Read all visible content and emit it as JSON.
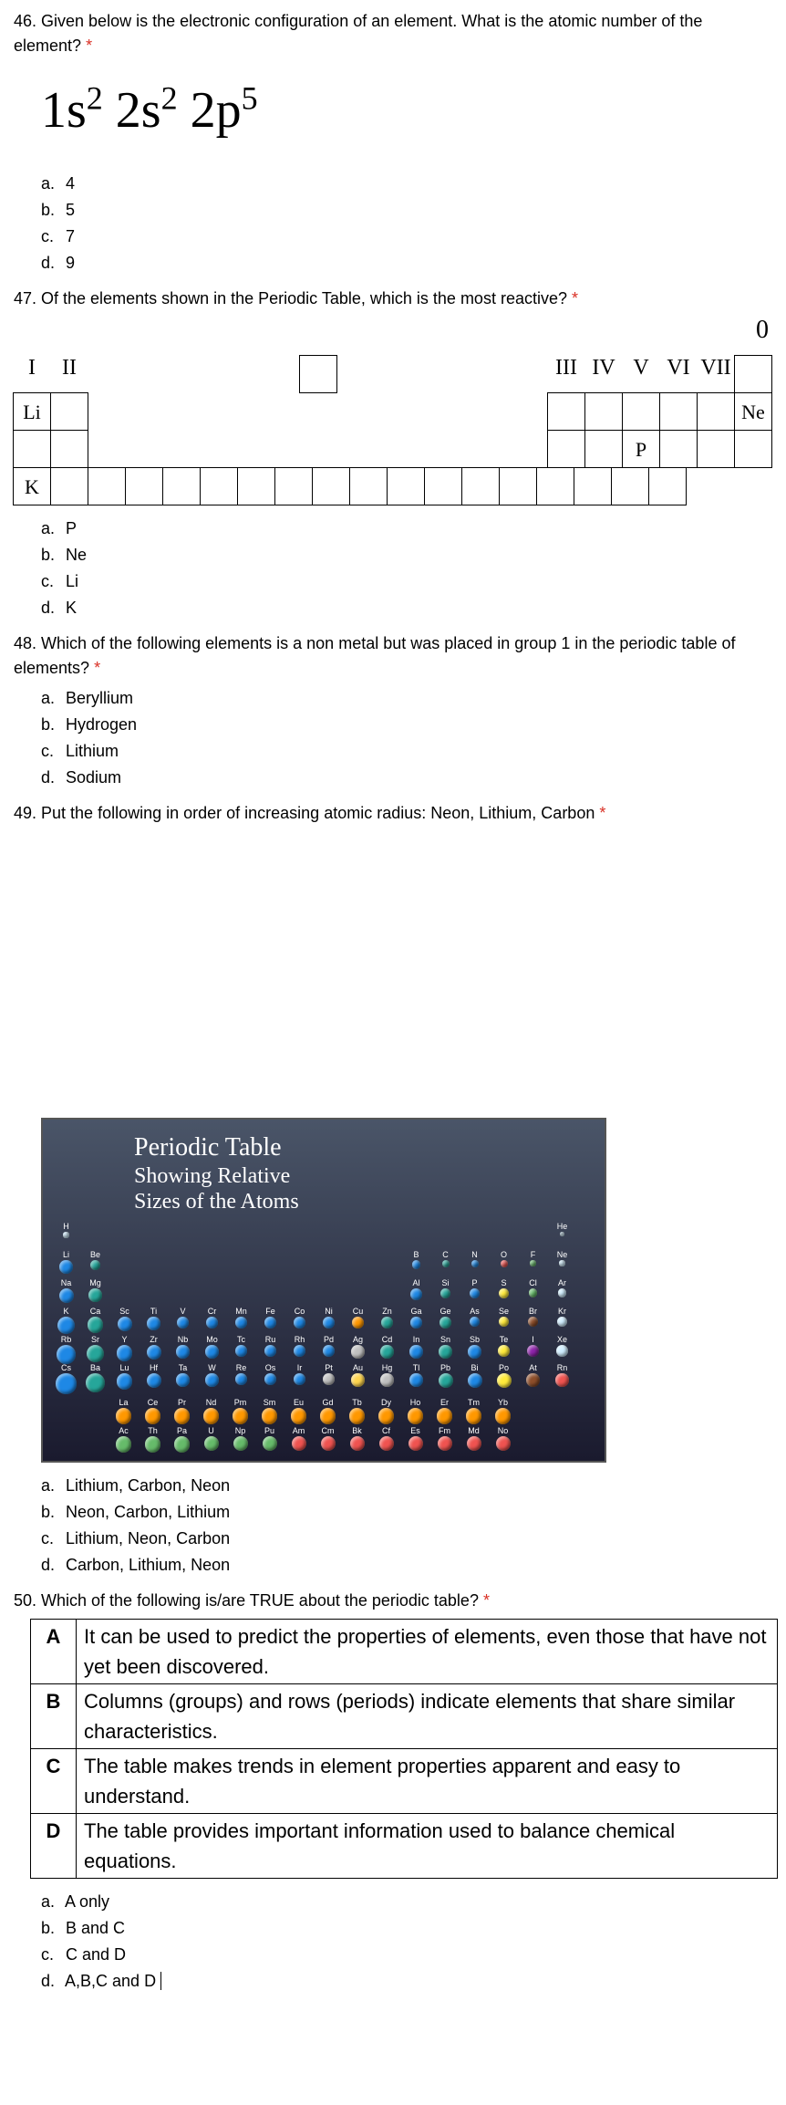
{
  "q46": {
    "text": "46. Given below is the electronic configuration of an element. What is the atomic number of the element?",
    "formula_html": "1s² 2s² 2p⁵",
    "options": {
      "a": "4",
      "b": "5",
      "c": "7",
      "d": "9"
    }
  },
  "q47": {
    "text": "47. Of the elements shown in the Periodic Table, which is the most reactive?",
    "groups": [
      "I",
      "II",
      "III",
      "IV",
      "V",
      "VI",
      "VII",
      "0"
    ],
    "cells": {
      "Li": "Li",
      "Ne": "Ne",
      "P": "P",
      "K": "K"
    },
    "options": {
      "a": "P",
      "b": "Ne",
      "c": "Li",
      "d": "K"
    }
  },
  "q48": {
    "text": "48. Which of the following elements is a non metal but was placed in group 1 in the periodic table of elements?",
    "options": {
      "a": "Beryllium",
      "b": "Hydrogen",
      "c": "Lithium",
      "d": "Sodium"
    }
  },
  "q49": {
    "text": "49. Put the following in order of increasing atomic radius: Neon, Lithium, Carbon",
    "title1": "Periodic Table",
    "title2": "Showing Relative",
    "title3": "Sizes of the Atoms",
    "rows": [
      [
        {
          "s": "H",
          "c": "#cfeeff",
          "r": 4
        },
        null,
        null,
        null,
        null,
        null,
        null,
        null,
        null,
        null,
        null,
        null,
        null,
        null,
        null,
        null,
        null,
        {
          "s": "He",
          "c": "#cfeeff",
          "r": 3
        }
      ],
      [
        {
          "s": "Li",
          "c": "#1e88e5",
          "r": 9
        },
        {
          "s": "Be",
          "c": "#26a69a",
          "r": 7
        },
        null,
        null,
        null,
        null,
        null,
        null,
        null,
        null,
        null,
        null,
        {
          "s": "B",
          "c": "#1e88e5",
          "r": 6
        },
        {
          "s": "C",
          "c": "#26a69a",
          "r": 5
        },
        {
          "s": "N",
          "c": "#1e88e5",
          "r": 5
        },
        {
          "s": "O",
          "c": "#ef5350",
          "r": 5
        },
        {
          "s": "F",
          "c": "#66bb6a",
          "r": 4
        },
        {
          "s": "Ne",
          "c": "#cfeeff",
          "r": 4
        }
      ],
      [
        {
          "s": "Na",
          "c": "#1e88e5",
          "r": 10
        },
        {
          "s": "Mg",
          "c": "#26a69a",
          "r": 9
        },
        null,
        null,
        null,
        null,
        null,
        null,
        null,
        null,
        null,
        null,
        {
          "s": "Al",
          "c": "#1e88e5",
          "r": 8
        },
        {
          "s": "Si",
          "c": "#26a69a",
          "r": 7
        },
        {
          "s": "P",
          "c": "#1e88e5",
          "r": 7
        },
        {
          "s": "S",
          "c": "#ffeb3b",
          "r": 7
        },
        {
          "s": "Cl",
          "c": "#66bb6a",
          "r": 6
        },
        {
          "s": "Ar",
          "c": "#cfeeff",
          "r": 6
        }
      ],
      [
        {
          "s": "K",
          "c": "#1e88e5",
          "r": 12
        },
        {
          "s": "Ca",
          "c": "#26a69a",
          "r": 11
        },
        {
          "s": "Sc",
          "c": "#1e88e5",
          "r": 10
        },
        {
          "s": "Ti",
          "c": "#1e88e5",
          "r": 9
        },
        {
          "s": "V",
          "c": "#1e88e5",
          "r": 8
        },
        {
          "s": "Cr",
          "c": "#1e88e5",
          "r": 8
        },
        {
          "s": "Mn",
          "c": "#1e88e5",
          "r": 8
        },
        {
          "s": "Fe",
          "c": "#1e88e5",
          "r": 8
        },
        {
          "s": "Co",
          "c": "#1e88e5",
          "r": 8
        },
        {
          "s": "Ni",
          "c": "#1e88e5",
          "r": 8
        },
        {
          "s": "Cu",
          "c": "#ff9800",
          "r": 8
        },
        {
          "s": "Zn",
          "c": "#26a69a",
          "r": 8
        },
        {
          "s": "Ga",
          "c": "#1e88e5",
          "r": 8
        },
        {
          "s": "Ge",
          "c": "#26a69a",
          "r": 8
        },
        {
          "s": "As",
          "c": "#1e88e5",
          "r": 7
        },
        {
          "s": "Se",
          "c": "#ffeb3b",
          "r": 7
        },
        {
          "s": "Br",
          "c": "#8d4e2a",
          "r": 7
        },
        {
          "s": "Kr",
          "c": "#cfeeff",
          "r": 7
        }
      ],
      [
        {
          "s": "Rb",
          "c": "#1e88e5",
          "r": 13
        },
        {
          "s": "Sr",
          "c": "#26a69a",
          "r": 12
        },
        {
          "s": "Y",
          "c": "#1e88e5",
          "r": 11
        },
        {
          "s": "Zr",
          "c": "#1e88e5",
          "r": 10
        },
        {
          "s": "Nb",
          "c": "#1e88e5",
          "r": 9
        },
        {
          "s": "Mo",
          "c": "#1e88e5",
          "r": 9
        },
        {
          "s": "Tc",
          "c": "#1e88e5",
          "r": 8
        },
        {
          "s": "Ru",
          "c": "#1e88e5",
          "r": 8
        },
        {
          "s": "Rh",
          "c": "#1e88e5",
          "r": 8
        },
        {
          "s": "Pd",
          "c": "#1e88e5",
          "r": 8
        },
        {
          "s": "Ag",
          "c": "#c0c0c0",
          "r": 9
        },
        {
          "s": "Cd",
          "c": "#26a69a",
          "r": 9
        },
        {
          "s": "In",
          "c": "#1e88e5",
          "r": 9
        },
        {
          "s": "Sn",
          "c": "#26a69a",
          "r": 9
        },
        {
          "s": "Sb",
          "c": "#1e88e5",
          "r": 9
        },
        {
          "s": "Te",
          "c": "#ffeb3b",
          "r": 8
        },
        {
          "s": "I",
          "c": "#8e24aa",
          "r": 8
        },
        {
          "s": "Xe",
          "c": "#cfeeff",
          "r": 8
        }
      ],
      [
        {
          "s": "Cs",
          "c": "#1e88e5",
          "r": 14
        },
        {
          "s": "Ba",
          "c": "#26a69a",
          "r": 13
        },
        {
          "s": "Lu",
          "c": "#1e88e5",
          "r": 11
        },
        {
          "s": "Hf",
          "c": "#1e88e5",
          "r": 10
        },
        {
          "s": "Ta",
          "c": "#1e88e5",
          "r": 9
        },
        {
          "s": "W",
          "c": "#1e88e5",
          "r": 9
        },
        {
          "s": "Re",
          "c": "#1e88e5",
          "r": 8
        },
        {
          "s": "Os",
          "c": "#1e88e5",
          "r": 8
        },
        {
          "s": "Ir",
          "c": "#1e88e5",
          "r": 8
        },
        {
          "s": "Pt",
          "c": "#c0c0c0",
          "r": 8
        },
        {
          "s": "Au",
          "c": "#ffd54f",
          "r": 9
        },
        {
          "s": "Hg",
          "c": "#c0c0c0",
          "r": 9
        },
        {
          "s": "Tl",
          "c": "#1e88e5",
          "r": 9
        },
        {
          "s": "Pb",
          "c": "#26a69a",
          "r": 10
        },
        {
          "s": "Bi",
          "c": "#1e88e5",
          "r": 10
        },
        {
          "s": "Po",
          "c": "#ffeb3b",
          "r": 10
        },
        {
          "s": "At",
          "c": "#8d4e2a",
          "r": 9
        },
        {
          "s": "Rn",
          "c": "#ef5350",
          "r": 9
        }
      ]
    ],
    "lan": [
      [
        {
          "s": "La",
          "c": "#ff9800",
          "r": 11
        },
        {
          "s": "Ce",
          "c": "#ff9800",
          "r": 11
        },
        {
          "s": "Pr",
          "c": "#ff9800",
          "r": 11
        },
        {
          "s": "Nd",
          "c": "#ff9800",
          "r": 11
        },
        {
          "s": "Pm",
          "c": "#ff9800",
          "r": 11
        },
        {
          "s": "Sm",
          "c": "#ff9800",
          "r": 11
        },
        {
          "s": "Eu",
          "c": "#ff9800",
          "r": 11
        },
        {
          "s": "Gd",
          "c": "#ff9800",
          "r": 11
        },
        {
          "s": "Tb",
          "c": "#ff9800",
          "r": 11
        },
        {
          "s": "Dy",
          "c": "#ff9800",
          "r": 11
        },
        {
          "s": "Ho",
          "c": "#ff9800",
          "r": 11
        },
        {
          "s": "Er",
          "c": "#ff9800",
          "r": 11
        },
        {
          "s": "Tm",
          "c": "#ff9800",
          "r": 11
        },
        {
          "s": "Yb",
          "c": "#ff9800",
          "r": 11
        }
      ],
      [
        {
          "s": "Ac",
          "c": "#66bb6a",
          "r": 11
        },
        {
          "s": "Th",
          "c": "#66bb6a",
          "r": 11
        },
        {
          "s": "Pa",
          "c": "#66bb6a",
          "r": 11
        },
        {
          "s": "U",
          "c": "#66bb6a",
          "r": 10
        },
        {
          "s": "Np",
          "c": "#66bb6a",
          "r": 10
        },
        {
          "s": "Pu",
          "c": "#66bb6a",
          "r": 10
        },
        {
          "s": "Am",
          "c": "#ef5350",
          "r": 10
        },
        {
          "s": "Cm",
          "c": "#ef5350",
          "r": 10
        },
        {
          "s": "Bk",
          "c": "#ef5350",
          "r": 10
        },
        {
          "s": "Cf",
          "c": "#ef5350",
          "r": 10
        },
        {
          "s": "Es",
          "c": "#ef5350",
          "r": 10
        },
        {
          "s": "Fm",
          "c": "#ef5350",
          "r": 10
        },
        {
          "s": "Md",
          "c": "#ef5350",
          "r": 10
        },
        {
          "s": "No",
          "c": "#ef5350",
          "r": 10
        }
      ]
    ],
    "options": {
      "a": "Lithium, Carbon, Neon",
      "b": "Neon, Carbon, Lithium",
      "c": "Lithium, Neon, Carbon",
      "d": "Carbon, Lithium, Neon"
    }
  },
  "q50": {
    "text": "50. Which of the following is/are TRUE about the periodic table?",
    "rows": [
      {
        "l": "A",
        "t": "It can be used to predict the properties of elements, even those that have not yet been discovered."
      },
      {
        "l": "B",
        "t": "Columns (groups) and rows (periods) indicate elements that share similar characteristics."
      },
      {
        "l": "C",
        "t": "The table makes trends in element properties apparent and easy to understand."
      },
      {
        "l": "D",
        "t": "The table provides important information used to balance chemical equations."
      }
    ],
    "options": {
      "a": "A only",
      "b": "B and C",
      "c": "C and D",
      "d": "A,B,C and D"
    }
  }
}
